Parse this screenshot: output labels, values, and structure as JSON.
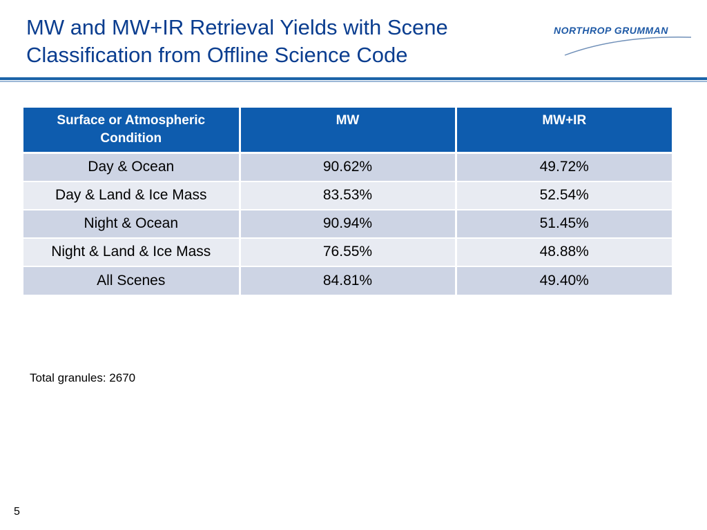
{
  "slide": {
    "title_line1": "MW and MW+IR Retrieval Yields with Scene",
    "title_line2": "Classification from Offline Science Code",
    "logo_text": "NORTHROP GRUMMAN",
    "note": "Total granules: 2670",
    "page_number": "5"
  },
  "table": {
    "headers": [
      "Surface or Atmospheric Condition",
      "MW",
      "MW+IR"
    ],
    "rows": [
      [
        "Day & Ocean",
        "90.62%",
        "49.72%"
      ],
      [
        "Day & Land & Ice Mass",
        "83.53%",
        "52.54%"
      ],
      [
        "Night & Ocean",
        "90.94%",
        "51.45%"
      ],
      [
        "Night & Land & Ice Mass",
        "76.55%",
        "48.88%"
      ],
      [
        "All Scenes",
        "84.81%",
        "49.40%"
      ]
    ]
  },
  "colors": {
    "title": "#0a3d8f",
    "header_bg": "#0e5cae",
    "row_odd_bg": "#cdd4e4",
    "row_even_bg": "#e8ebf2",
    "rule": "#1b63a8",
    "logo": "#1f5aa6"
  }
}
